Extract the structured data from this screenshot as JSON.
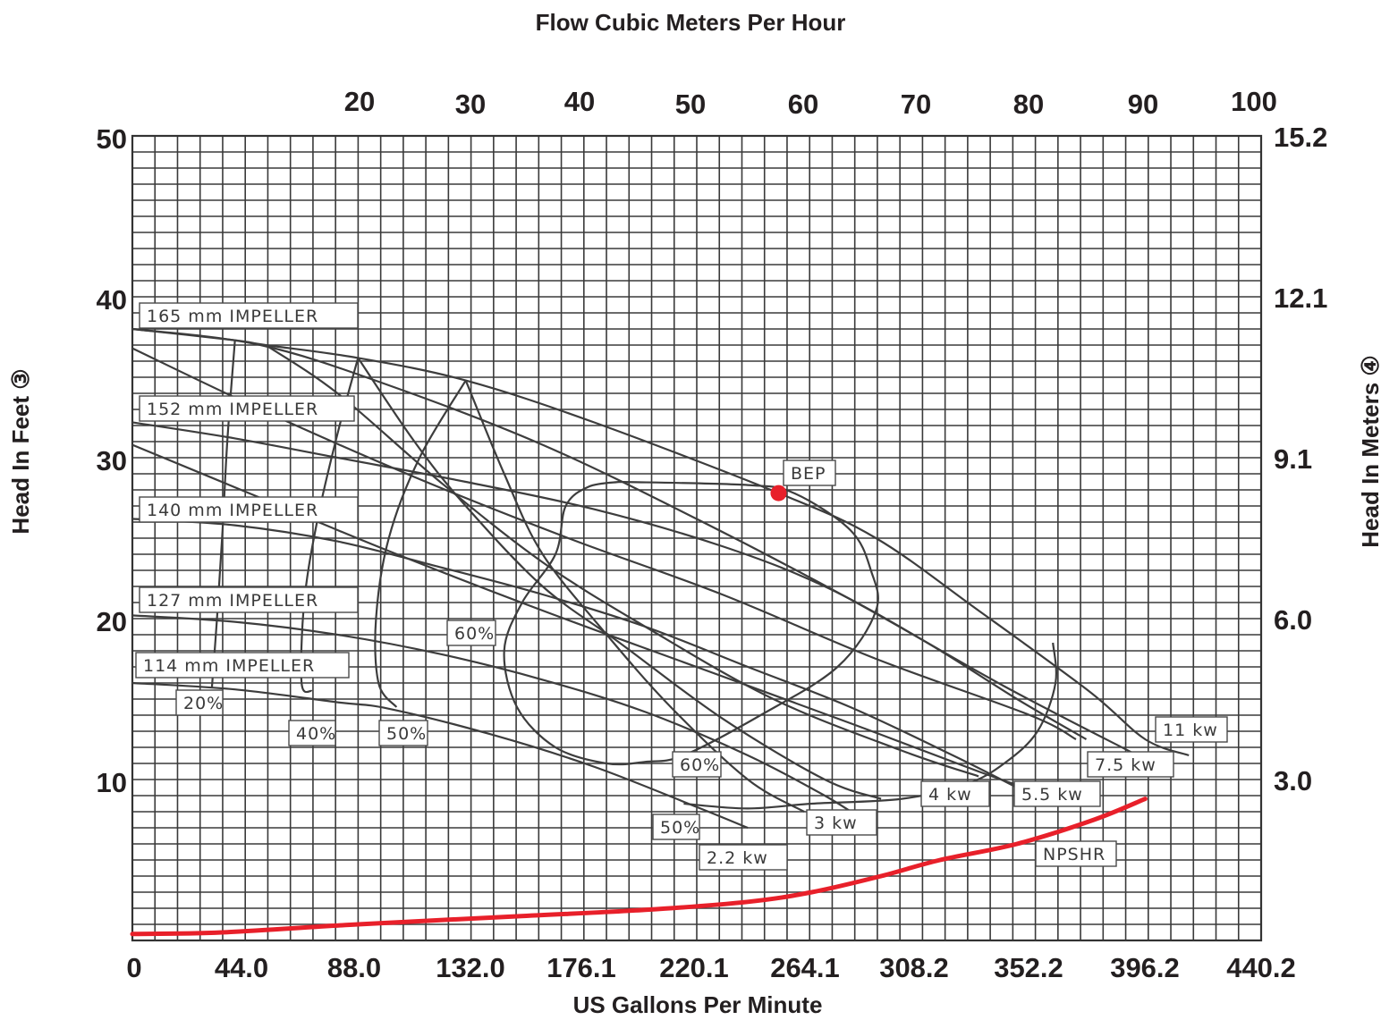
{
  "chart_data": {
    "type": "line",
    "title": "Flow Cubic Meters Per Hour",
    "xlabel": "US Gallons Per Minute",
    "ylabel": "Head In Feet ③",
    "y2label": "Head In Meters ④",
    "x2label": "Flow Cubic Meters Per Hour",
    "xlim": [
      0,
      440.2
    ],
    "ylim": [
      0,
      50
    ],
    "grid": true,
    "x_ticks": [
      "0",
      "44.0",
      "88.0",
      "132.0",
      "176.1",
      "220.1",
      "264.1",
      "308.2",
      "352.2",
      "396.2",
      "440.2"
    ],
    "x_tick_values": [
      0,
      44.0,
      88.0,
      132.0,
      176.1,
      220.1,
      264.1,
      308.2,
      352.2,
      396.2,
      440.2
    ],
    "y_ticks": [
      "10",
      "20",
      "30",
      "40",
      "50"
    ],
    "y_tick_values": [
      10,
      20,
      30,
      40,
      50
    ],
    "x2_ticks": [
      "20",
      "30",
      "40",
      "50",
      "60",
      "70",
      "80",
      "90",
      "100"
    ],
    "x2_tick_values": [
      20,
      30,
      40,
      50,
      60,
      70,
      80,
      90,
      100
    ],
    "y2_ticks": [
      "3.0",
      "6.0",
      "9.1",
      "12.1",
      "15.2"
    ],
    "y2_tick_values": [
      3.0,
      6.0,
      9.1,
      12.1,
      15.2
    ],
    "colors": {
      "npshr": "#e8202a",
      "bep": "#e8202a",
      "curves": "#3d3d3d",
      "text": "#231f20"
    },
    "impeller_curves": [
      {
        "name": "165 mm IMPELLER",
        "points": [
          [
            0,
            38.0
          ],
          [
            40,
            37.3
          ],
          [
            52,
            37.0
          ],
          [
            88,
            36.2
          ],
          [
            130,
            34.8
          ],
          [
            180,
            32.2
          ],
          [
            252,
            27.8
          ],
          [
            290,
            25.0
          ],
          [
            330,
            20.5
          ],
          [
            373,
            15.5
          ],
          [
            395,
            12.5
          ],
          [
            412,
            11.5
          ]
        ]
      },
      {
        "name": "152 mm IMPELLER",
        "points": [
          [
            0,
            32.2
          ],
          [
            40,
            31.2
          ],
          [
            80,
            30.0
          ],
          [
            130,
            28.5
          ],
          [
            180,
            26.8
          ],
          [
            230,
            24.5
          ],
          [
            270,
            22.0
          ],
          [
            310,
            18.5
          ],
          [
            345,
            15.0
          ],
          [
            372,
            12.5
          ]
        ]
      },
      {
        "name": "140 mm IMPELLER",
        "points": [
          [
            0,
            26.2
          ],
          [
            40,
            25.8
          ],
          [
            80,
            24.8
          ],
          [
            120,
            23.2
          ],
          [
            160,
            21.5
          ],
          [
            200,
            19.5
          ],
          [
            240,
            17.0
          ],
          [
            280,
            14.5
          ],
          [
            320,
            11.5
          ],
          [
            345,
            9.5
          ]
        ]
      },
      {
        "name": "127 mm IMPELLER",
        "points": [
          [
            0,
            20.2
          ],
          [
            40,
            19.8
          ],
          [
            80,
            19.0
          ],
          [
            120,
            17.8
          ],
          [
            160,
            16.2
          ],
          [
            200,
            14.2
          ],
          [
            240,
            11.5
          ],
          [
            270,
            9.0
          ],
          [
            285,
            7.5
          ]
        ]
      },
      {
        "name": "114 mm IMPELLER",
        "points": [
          [
            0,
            16.0
          ],
          [
            40,
            15.6
          ],
          [
            80,
            14.8
          ],
          [
            100,
            14.4
          ],
          [
            140,
            12.8
          ],
          [
            180,
            10.8
          ],
          [
            220,
            8.3
          ],
          [
            240,
            7.0
          ]
        ]
      }
    ],
    "power_curves": [
      {
        "name": "11 kw",
        "points": [
          [
            0,
            38.0
          ],
          [
            50,
            37.0
          ],
          [
            100,
            34.5
          ],
          [
            160,
            30.8
          ],
          [
            220,
            26.2
          ],
          [
            280,
            21.2
          ],
          [
            340,
            15.8
          ],
          [
            392,
            11.5
          ]
        ]
      },
      {
        "name": "7.5 kw",
        "points": [
          [
            0,
            36.8
          ],
          [
            50,
            33.0
          ],
          [
            110,
            28.8
          ],
          [
            170,
            25.0
          ],
          [
            230,
            21.5
          ],
          [
            290,
            17.5
          ],
          [
            350,
            14.0
          ],
          [
            368,
            12.5
          ]
        ]
      },
      {
        "name": "5.5 kw",
        "points": [
          [
            0,
            30.8
          ],
          [
            50,
            27.5
          ],
          [
            100,
            24.2
          ],
          [
            160,
            20.5
          ],
          [
            220,
            17.0
          ],
          [
            280,
            13.5
          ],
          [
            330,
            10.5
          ],
          [
            348,
            9.5
          ]
        ]
      },
      {
        "name": "4 kw",
        "points": [
          [
            52,
            37.0
          ],
          [
            80,
            34.0
          ],
          [
            120,
            28.5
          ],
          [
            160,
            23.5
          ],
          [
            200,
            19.5
          ],
          [
            250,
            15.0
          ],
          [
            300,
            11.8
          ],
          [
            330,
            10.2
          ]
        ]
      },
      {
        "name": "3 kw",
        "points": [
          [
            88,
            36.2
          ],
          [
            110,
            31.0
          ],
          [
            130,
            27.0
          ],
          [
            160,
            22.0
          ],
          [
            190,
            18.5
          ],
          [
            230,
            13.8
          ],
          [
            270,
            10.0
          ],
          [
            292,
            8.8
          ]
        ]
      },
      {
        "name": "2.2 kw",
        "points": [
          [
            130,
            34.8
          ],
          [
            145,
            29.0
          ],
          [
            160,
            24.0
          ],
          [
            185,
            19.0
          ],
          [
            210,
            14.5
          ],
          [
            240,
            10.0
          ],
          [
            262,
            8.0
          ]
        ]
      }
    ],
    "efficiency_curves": [
      {
        "name": "20%",
        "points": [
          [
            40,
            37.3
          ],
          [
            37,
            31.0
          ],
          [
            35,
            25.0
          ],
          [
            33,
            20.0
          ],
          [
            31,
            15.7
          ]
        ]
      },
      {
        "name": "40%",
        "points": [
          [
            88,
            36.2
          ],
          [
            80,
            31.5
          ],
          [
            72,
            26.0
          ],
          [
            67,
            21.0
          ],
          [
            66,
            16.0
          ],
          [
            70,
            15.5
          ]
        ]
      },
      {
        "name": "50%",
        "points": [
          [
            130,
            34.8
          ],
          [
            112,
            30.0
          ],
          [
            100,
            25.0
          ],
          [
            95,
            20.0
          ],
          [
            96,
            16.0
          ],
          [
            103,
            14.5
          ]
        ]
      },
      {
        "name": "60%",
        "closed": true,
        "points": [
          [
            190,
            28.5
          ],
          [
            240,
            28.3
          ],
          [
            258,
            27.8
          ],
          [
            280,
            25.5
          ],
          [
            288,
            23.0
          ],
          [
            290,
            20.5
          ],
          [
            275,
            17.0
          ],
          [
            245,
            14.0
          ],
          [
            215,
            11.5
          ],
          [
            200,
            11.1
          ],
          [
            185,
            11.0
          ],
          [
            165,
            12.0
          ],
          [
            150,
            14.5
          ],
          [
            145,
            18.0
          ],
          [
            152,
            21.0
          ],
          [
            165,
            24.0
          ],
          [
            169,
            27.0
          ],
          [
            178,
            28.2
          ],
          [
            190,
            28.5
          ]
        ]
      },
      {
        "name": "50%",
        "points": [
          [
            359,
            18.5
          ],
          [
            360,
            16.0
          ],
          [
            353,
            13.0
          ],
          [
            340,
            11.0
          ],
          [
            325,
            9.7
          ],
          [
            300,
            8.8
          ],
          [
            265,
            8.5
          ],
          [
            240,
            8.2
          ],
          [
            215,
            8.5
          ]
        ]
      }
    ],
    "npshr": {
      "name": "NPSHR",
      "points": [
        [
          0,
          0.4
        ],
        [
          35,
          0.5
        ],
        [
          88,
          1.0
        ],
        [
          150,
          1.5
        ],
        [
          200,
          1.9
        ],
        [
          240,
          2.4
        ],
        [
          265,
          3.0
        ],
        [
          292,
          4.0
        ],
        [
          315,
          5.0
        ],
        [
          345,
          6.0
        ],
        [
          375,
          7.5
        ],
        [
          395,
          8.8
        ]
      ]
    },
    "bep": {
      "label": "BEP",
      "x": 252,
      "y": 27.8
    },
    "labels": {
      "impeller_165": "165 mm IMPELLER",
      "impeller_152": "152 mm IMPELLER",
      "impeller_140": "140 mm IMPELLER",
      "impeller_127": "127 mm IMPELLER",
      "impeller_114": "114 mm IMPELLER",
      "eff_20": "20%",
      "eff_40": "40%",
      "eff_50_left": "50%",
      "eff_60_left": "60%",
      "eff_60_bottom": "60%",
      "eff_50_bottom": "50%",
      "pw_11": "11 kw",
      "pw_75": "7.5 kw",
      "pw_55": "5.5 kw",
      "pw_4": "4 kw",
      "pw_3": "3 kw",
      "pw_22": "2.2 kw",
      "npshr": "NPSHR",
      "bep": "BEP"
    }
  }
}
